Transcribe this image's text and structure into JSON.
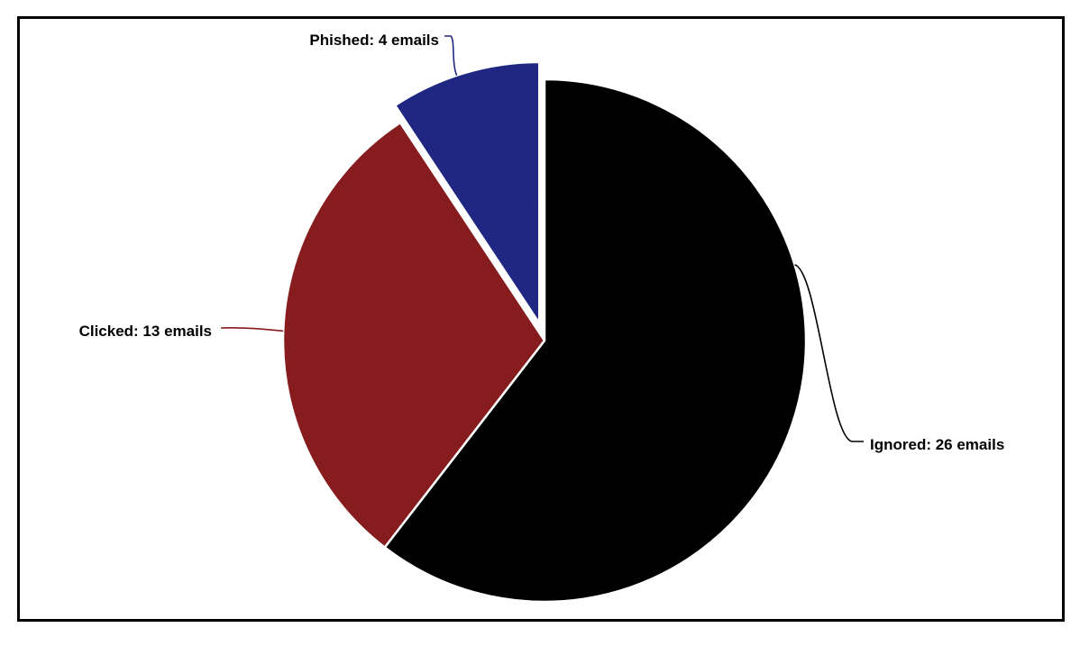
{
  "chart_data": {
    "type": "pie",
    "title": "",
    "slices": [
      {
        "name": "Ignored",
        "value": 26,
        "label": "Ignored: 26 emails",
        "color": "#000000",
        "exploded": false
      },
      {
        "name": "Clicked",
        "value": 13,
        "label": "Clicked: 13 emails",
        "color": "#861c1e",
        "exploded": false
      },
      {
        "name": "Phished",
        "value": 4,
        "label": "Phished: 4 emails",
        "color": "#1f2782",
        "exploded": true
      }
    ],
    "start_angle": "12 o'clock",
    "direction": "clockwise",
    "legend": "none",
    "data_labels": "outside with leader lines"
  }
}
